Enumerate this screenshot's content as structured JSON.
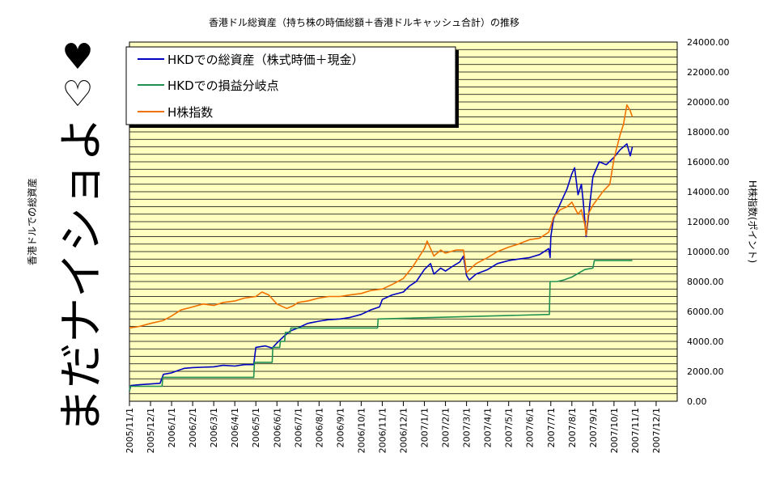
{
  "chart_data": {
    "type": "line",
    "title": "香港ドル総資産（持ち株の時価総額＋香港ドルキャッシュ合計）の推移",
    "ylabel_left": "香港ドルでの総資産",
    "ylabel_right": "H株指数(ポイント)",
    "ylim": [
      0,
      24000
    ],
    "ytick_step": 2000,
    "y_ticks": [
      "0.00",
      "2000.00",
      "4000.00",
      "6000.00",
      "8000.00",
      "10000.00",
      "12000.00",
      "14000.00",
      "16000.00",
      "18000.00",
      "20000.00",
      "22000.00",
      "24000.00"
    ],
    "x_ticks": [
      "2005/11/1",
      "2005/12/1",
      "2006/1/1",
      "2006/2/1",
      "2006/3/1",
      "2006/4/1",
      "2006/5/1",
      "2006/6/1",
      "2006/7/1",
      "2006/8/1",
      "2006/9/1",
      "2006/10/1",
      "2006/11/1",
      "2006/12/1",
      "2007/1/1",
      "2007/2/1",
      "2007/3/1",
      "2007/4/1",
      "2007/5/1",
      "2007/6/1",
      "2007/7/1",
      "2007/8/1",
      "2007/9/1",
      "2007/10/1",
      "2007/11/1",
      "2007/12/1"
    ],
    "legend_position": "top-left",
    "grid": true,
    "series": [
      {
        "name": "HKDでの総資産（株式時価＋現金）",
        "color": "#0000c0",
        "points": [
          [
            "2005/11/1",
            700
          ],
          [
            "2005/11/3",
            1050
          ],
          [
            "2005/11/15",
            1100
          ],
          [
            "2005/11/30",
            1150
          ],
          [
            "2005/12/15",
            1200
          ],
          [
            "2005/12/20",
            1800
          ],
          [
            "2006/1/1",
            1900
          ],
          [
            "2006/1/10",
            2050
          ],
          [
            "2006/1/20",
            2200
          ],
          [
            "2006/2/1",
            2250
          ],
          [
            "2006/3/1",
            2300
          ],
          [
            "2006/3/15",
            2400
          ],
          [
            "2006/4/1",
            2350
          ],
          [
            "2006/4/15",
            2450
          ],
          [
            "2006/4/28",
            2450
          ],
          [
            "2006/5/1",
            3600
          ],
          [
            "2006/5/15",
            3700
          ],
          [
            "2006/5/25",
            3550
          ],
          [
            "2006/6/1",
            3900
          ],
          [
            "2006/6/10",
            4300
          ],
          [
            "2006/6/20",
            4700
          ],
          [
            "2006/7/1",
            4900
          ],
          [
            "2006/7/15",
            5200
          ],
          [
            "2006/8/1",
            5350
          ],
          [
            "2006/8/15",
            5450
          ],
          [
            "2006/9/1",
            5500
          ],
          [
            "2006/9/15",
            5600
          ],
          [
            "2006/10/1",
            5800
          ],
          [
            "2006/10/15",
            6100
          ],
          [
            "2006/10/28",
            6300
          ],
          [
            "2006/11/1",
            6800
          ],
          [
            "2006/11/15",
            7100
          ],
          [
            "2006/12/1",
            7300
          ],
          [
            "2006/12/10",
            7700
          ],
          [
            "2006/12/20",
            8000
          ],
          [
            "2007/1/1",
            8800
          ],
          [
            "2007/1/10",
            9200
          ],
          [
            "2007/1/15",
            8500
          ],
          [
            "2007/1/25",
            8900
          ],
          [
            "2007/2/1",
            8700
          ],
          [
            "2007/2/10",
            9000
          ],
          [
            "2007/2/20",
            9300
          ],
          [
            "2007/2/25",
            9700
          ],
          [
            "2007/3/1",
            8400
          ],
          [
            "2007/3/5",
            8100
          ],
          [
            "2007/3/15",
            8500
          ],
          [
            "2007/4/1",
            8800
          ],
          [
            "2007/4/15",
            9200
          ],
          [
            "2007/5/1",
            9400
          ],
          [
            "2007/5/15",
            9500
          ],
          [
            "2007/6/1",
            9600
          ],
          [
            "2007/6/15",
            9800
          ],
          [
            "2007/6/28",
            10200
          ],
          [
            "2007/6/30",
            9600
          ],
          [
            "2007/7/1",
            11000
          ],
          [
            "2007/7/5",
            12200
          ],
          [
            "2007/7/15",
            13200
          ],
          [
            "2007/7/25",
            14200
          ],
          [
            "2007/8/1",
            15200
          ],
          [
            "2007/8/5",
            15600
          ],
          [
            "2007/8/10",
            13800
          ],
          [
            "2007/8/15",
            14500
          ],
          [
            "2007/8/18",
            13200
          ],
          [
            "2007/8/22",
            11000
          ],
          [
            "2007/8/25",
            12200
          ],
          [
            "2007/9/1",
            15000
          ],
          [
            "2007/9/10",
            16000
          ],
          [
            "2007/9/20",
            15800
          ],
          [
            "2007/10/1",
            16300
          ],
          [
            "2007/10/10",
            16800
          ],
          [
            "2007/10/20",
            17200
          ],
          [
            "2007/10/25",
            16400
          ],
          [
            "2007/10/28",
            17000
          ]
        ]
      },
      {
        "name": "HKDでの損益分岐点",
        "color": "#209050",
        "points": [
          [
            "2005/11/1",
            700
          ],
          [
            "2005/11/2",
            1000
          ],
          [
            "2005/12/18",
            1000
          ],
          [
            "2005/12/19",
            1600
          ],
          [
            "2006/4/28",
            1600
          ],
          [
            "2006/4/29",
            2600
          ],
          [
            "2006/5/25",
            2600
          ],
          [
            "2006/5/26",
            3600
          ],
          [
            "2006/6/5",
            3600
          ],
          [
            "2006/6/6",
            4000
          ],
          [
            "2006/6/12",
            4000
          ],
          [
            "2006/6/13",
            4600
          ],
          [
            "2006/6/20",
            4600
          ],
          [
            "2006/6/21",
            4900
          ],
          [
            "2006/10/25",
            4900
          ],
          [
            "2006/10/26",
            5500
          ],
          [
            "2007/6/29",
            5800
          ],
          [
            "2007/6/30",
            8000
          ],
          [
            "2007/7/10",
            8000
          ],
          [
            "2007/7/20",
            8100
          ],
          [
            "2007/8/1",
            8300
          ],
          [
            "2007/8/20",
            8800
          ],
          [
            "2007/9/1",
            8900
          ],
          [
            "2007/9/3",
            9400
          ],
          [
            "2007/10/28",
            9400
          ]
        ]
      },
      {
        "name": "H株指数",
        "color": "#f07000",
        "points": [
          [
            "2005/11/1",
            4900
          ],
          [
            "2005/11/15",
            5000
          ],
          [
            "2005/12/1",
            5200
          ],
          [
            "2005/12/20",
            5400
          ],
          [
            "2006/1/1",
            5700
          ],
          [
            "2006/1/15",
            6100
          ],
          [
            "2006/2/1",
            6300
          ],
          [
            "2006/2/15",
            6500
          ],
          [
            "2006/3/1",
            6400
          ],
          [
            "2006/3/15",
            6600
          ],
          [
            "2006/4/1",
            6700
          ],
          [
            "2006/4/15",
            6900
          ],
          [
            "2006/5/1",
            7000
          ],
          [
            "2006/5/10",
            7300
          ],
          [
            "2006/5/20",
            7100
          ],
          [
            "2006/6/1",
            6500
          ],
          [
            "2006/6/15",
            6200
          ],
          [
            "2006/6/25",
            6400
          ],
          [
            "2006/7/1",
            6600
          ],
          [
            "2006/7/15",
            6700
          ],
          [
            "2006/8/1",
            6900
          ],
          [
            "2006/8/15",
            7000
          ],
          [
            "2006/9/1",
            7000
          ],
          [
            "2006/9/15",
            7100
          ],
          [
            "2006/10/1",
            7200
          ],
          [
            "2006/10/15",
            7400
          ],
          [
            "2006/11/1",
            7500
          ],
          [
            "2006/11/15",
            7800
          ],
          [
            "2006/12/1",
            8200
          ],
          [
            "2006/12/15",
            9000
          ],
          [
            "2007/1/1",
            10200
          ],
          [
            "2007/1/5",
            10700
          ],
          [
            "2007/1/15",
            9700
          ],
          [
            "2007/1/25",
            10100
          ],
          [
            "2007/2/1",
            9900
          ],
          [
            "2007/2/15",
            10100
          ],
          [
            "2007/2/25",
            10100
          ],
          [
            "2007/3/1",
            8600
          ],
          [
            "2007/3/15",
            9200
          ],
          [
            "2007/4/1",
            9600
          ],
          [
            "2007/4/15",
            10000
          ],
          [
            "2007/5/1",
            10300
          ],
          [
            "2007/5/15",
            10500
          ],
          [
            "2007/6/1",
            10800
          ],
          [
            "2007/6/15",
            10900
          ],
          [
            "2007/6/28",
            11300
          ],
          [
            "2007/7/1",
            11700
          ],
          [
            "2007/7/5",
            12300
          ],
          [
            "2007/7/15",
            12800
          ],
          [
            "2007/7/25",
            13000
          ],
          [
            "2007/8/1",
            13300
          ],
          [
            "2007/8/10",
            12500
          ],
          [
            "2007/8/15",
            12800
          ],
          [
            "2007/8/20",
            11800
          ],
          [
            "2007/8/22",
            11100
          ],
          [
            "2007/8/25",
            12500
          ],
          [
            "2007/9/1",
            13100
          ],
          [
            "2007/9/15",
            14000
          ],
          [
            "2007/9/25",
            14500
          ],
          [
            "2007/10/1",
            16200
          ],
          [
            "2007/10/10",
            17800
          ],
          [
            "2007/10/15",
            18500
          ],
          [
            "2007/10/20",
            19800
          ],
          [
            "2007/10/25",
            19400
          ],
          [
            "2007/10/28",
            19000
          ]
        ]
      }
    ]
  },
  "decor": {
    "hearts": [
      "♥",
      "♡"
    ],
    "vertical_message": "まだナイショよ",
    "plot_bg": "#ffffc0"
  }
}
